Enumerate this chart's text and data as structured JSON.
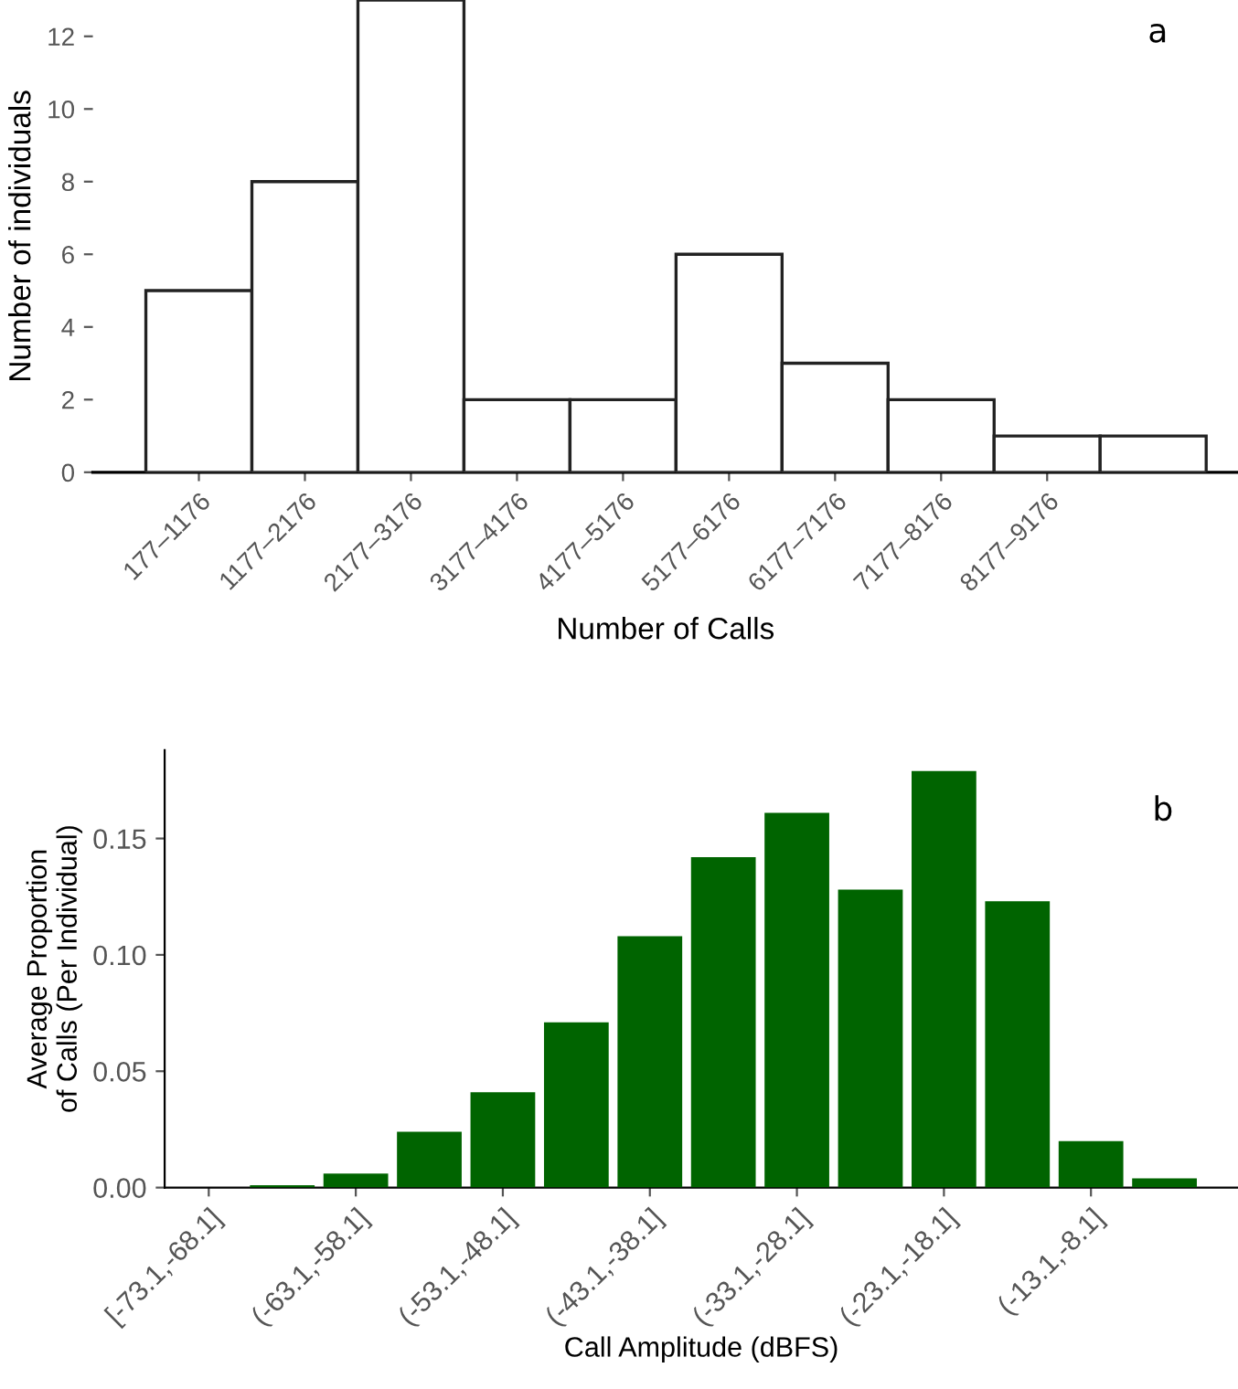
{
  "chart_data": [
    {
      "type": "bar",
      "xlabel": "Number of Calls",
      "ylabel": "Number of individuals",
      "annotations": [
        "a"
      ],
      "categories": [
        "177–1176",
        "1177–2176",
        "2177–3176",
        "3177–4176",
        "4177–5176",
        "5177–6176",
        "6177–7176",
        "7177–8176",
        "8177–9176",
        null
      ],
      "values": [
        5,
        8,
        13,
        2,
        2,
        6,
        3,
        2,
        1,
        1
      ],
      "color": "#ffffff",
      "ylim": [
        0,
        13
      ],
      "yticks": [
        0,
        2,
        4,
        6,
        8,
        10,
        12
      ],
      "grid": false
    },
    {
      "type": "bar",
      "xlabel": "Call Amplitude (dBFS)",
      "ylabel": "Average Proportion\nof Calls (Per Individual)",
      "annotations": [
        "b"
      ],
      "categories": [
        "[-73.1,-68.1]",
        null,
        "(-63.1,-58.1]",
        null,
        "(-53.1,-48.1]",
        null,
        "(-43.1,-38.1]",
        null,
        "(-33.1,-28.1]",
        null,
        "(-23.1,-18.1]",
        null,
        "(-13.1,-8.1]",
        null
      ],
      "values": [
        0,
        0.001,
        0.006,
        0.024,
        0.041,
        0.071,
        0.108,
        0.142,
        0.161,
        0.128,
        0.179,
        0.123,
        0.02,
        0.004
      ],
      "color": "#006400",
      "ylim": [
        0,
        0.188
      ],
      "yticks": [
        {
          "value": 0,
          "label": "0.00"
        },
        {
          "value": 0.05,
          "label": "0.05"
        },
        {
          "value": 0.1,
          "label": "0.10"
        },
        {
          "value": 0.15,
          "label": "0.15"
        }
      ],
      "grid": false
    }
  ]
}
